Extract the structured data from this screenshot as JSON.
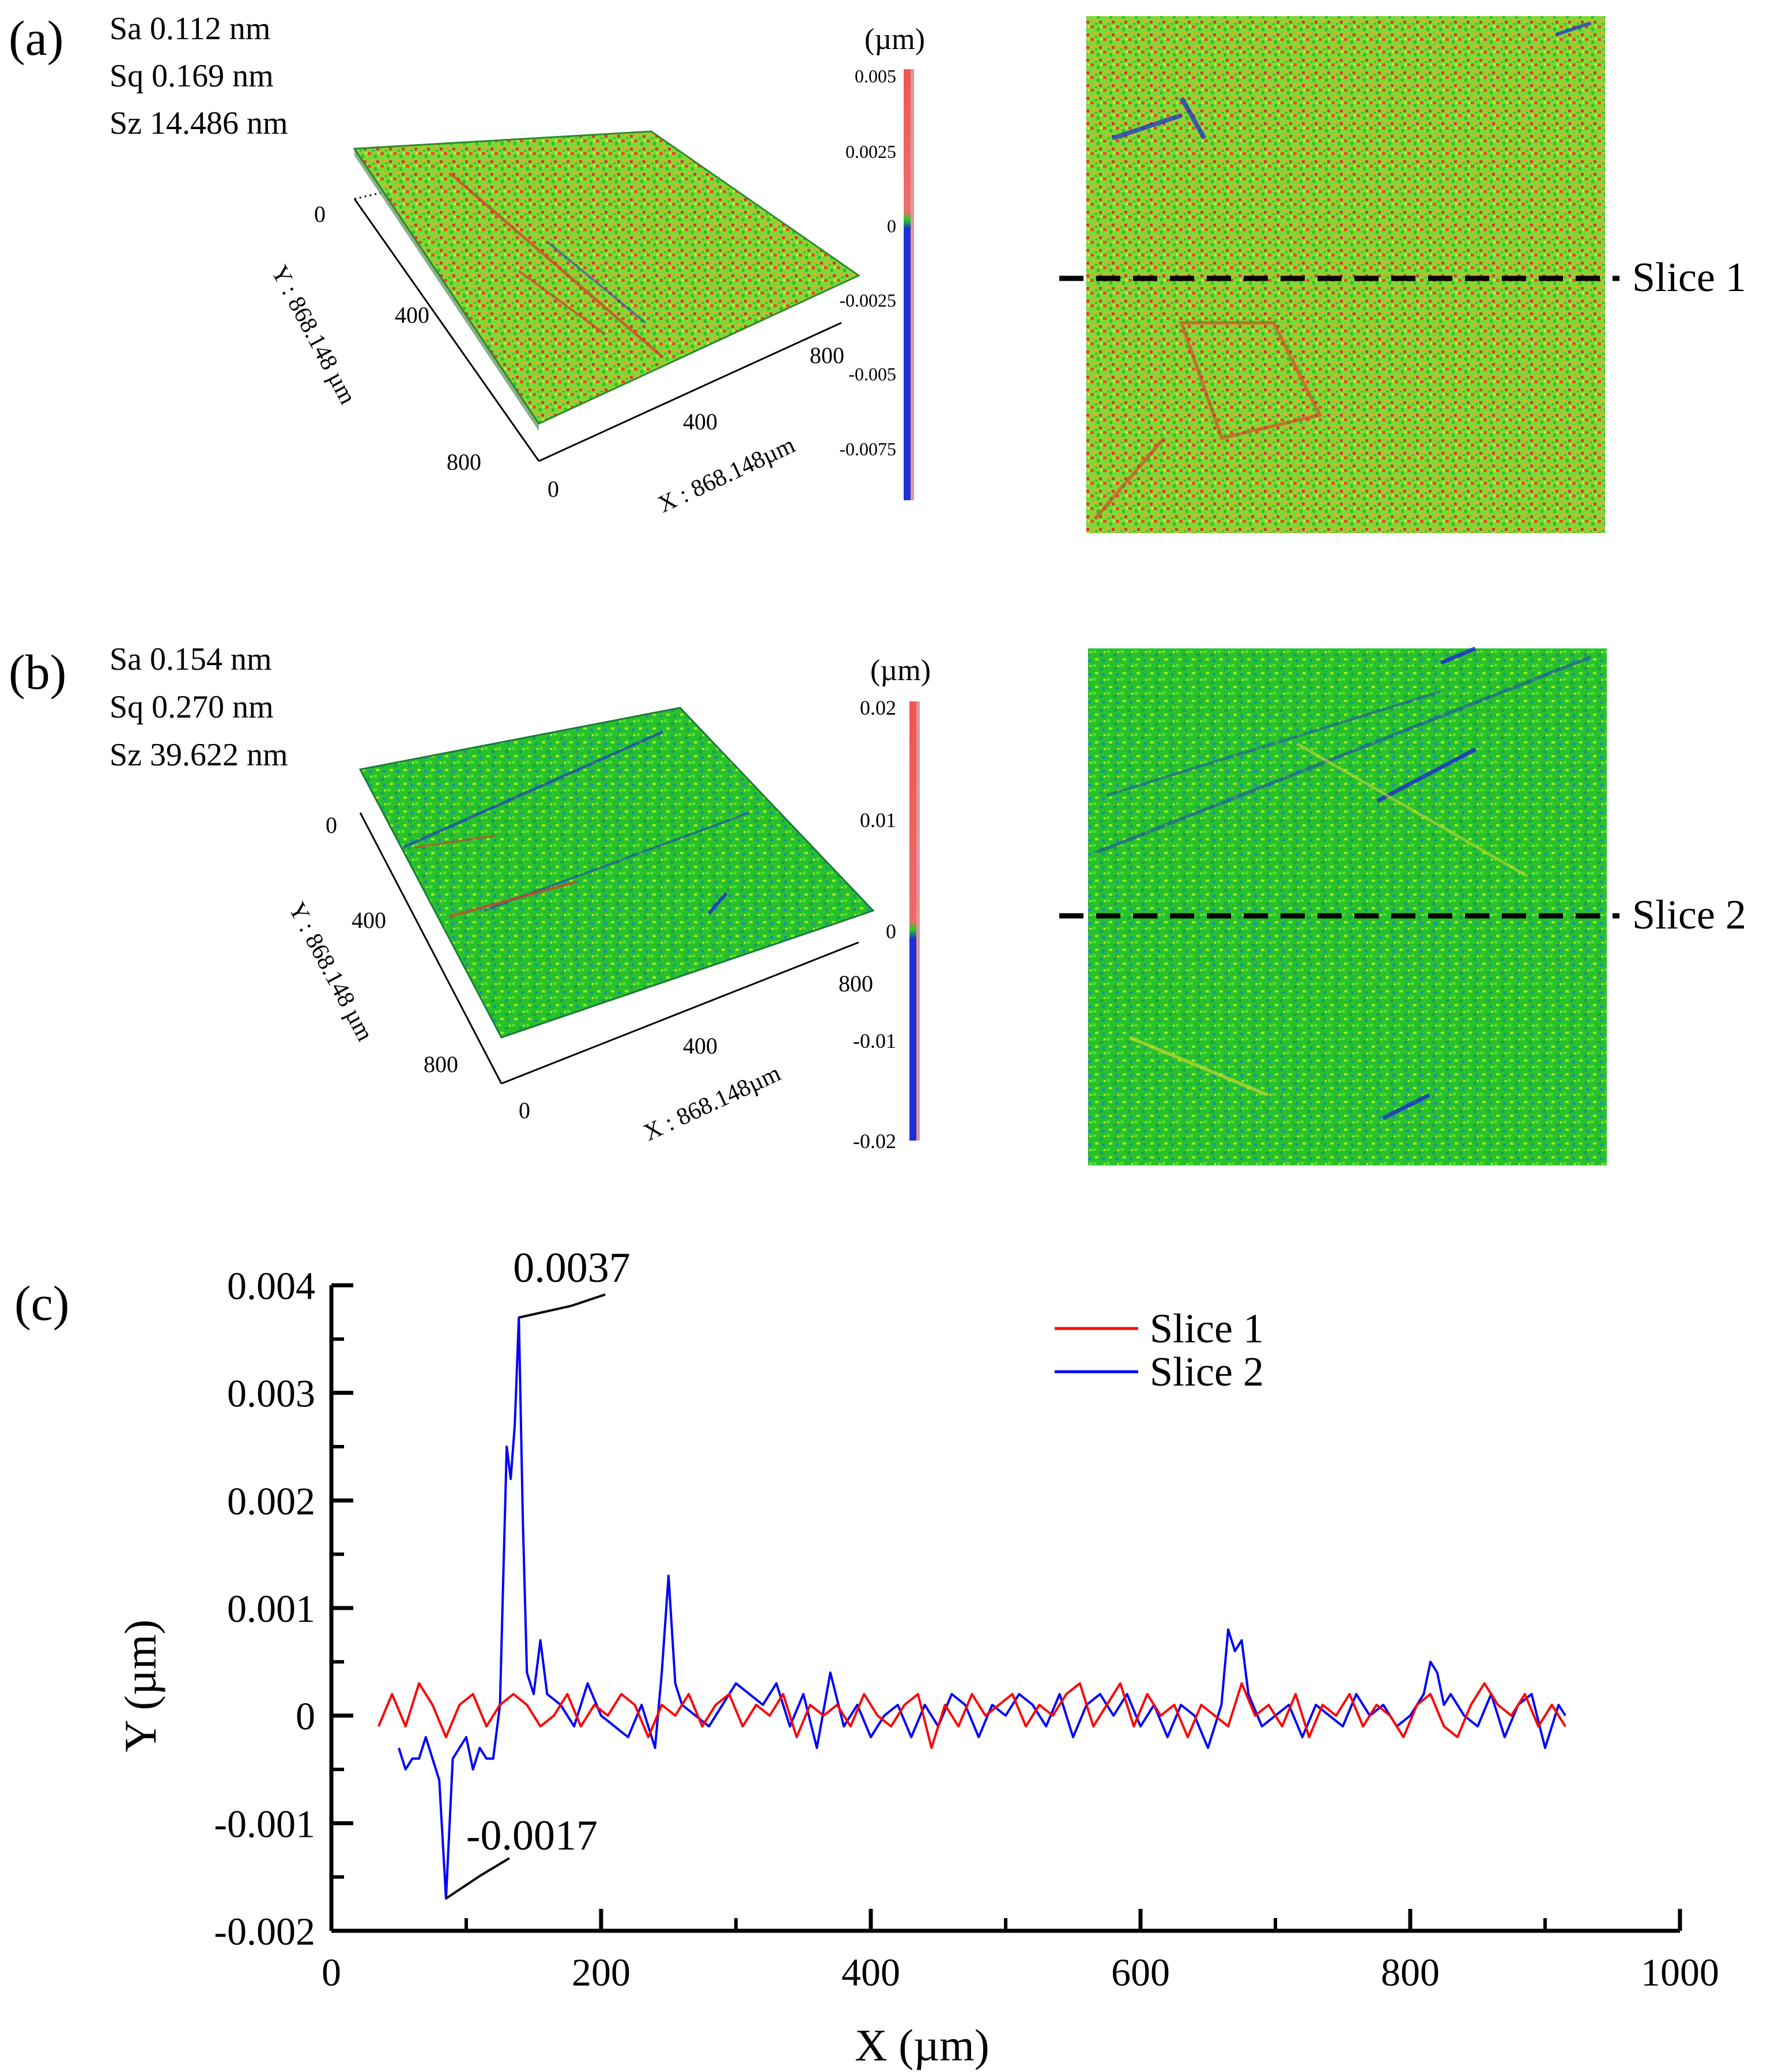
{
  "colors": {
    "surface_green": "#2cc02c",
    "surface_lime": "#9ee62a",
    "surface_orange": "#f08a24",
    "surface_red": "#ea3a2a",
    "surface_blue": "#1a2ad6",
    "colorbar_red": "#ee5555",
    "colorbar_blue": "#1f2fd8",
    "slice1": "#ff0000",
    "slice2": "#0000ff"
  },
  "panel_a": {
    "label": "(a)",
    "stats": [
      "Sa 0.112 nm",
      "Sq 0.169 nm",
      "Sz 14.486 nm"
    ],
    "colorbar_unit": "(µm)",
    "colorbar_ticks": [
      "0.005",
      "0.0025",
      "0",
      "-0.0025",
      "-0.005",
      "-0.0075"
    ],
    "y_axis_label": "Y : 868.148 µm",
    "x_axis_label": "X : 868.148µm",
    "y_ticks": [
      "0",
      "400",
      "800"
    ],
    "x_ticks": [
      "0",
      "400",
      "800"
    ],
    "slice_label": "Slice 1"
  },
  "panel_b": {
    "label": "(b)",
    "stats": [
      "Sa 0.154 nm",
      "Sq 0.270 nm",
      "Sz 39.622 nm"
    ],
    "colorbar_unit": "(µm)",
    "colorbar_ticks": [
      "0.02",
      "0.01",
      "0",
      "-0.01",
      "-0.02"
    ],
    "y_axis_label": "Y : 868.148 µm",
    "x_axis_label": "X : 868.148µm",
    "y_ticks": [
      "0",
      "400",
      "800"
    ],
    "x_ticks": [
      "0",
      "400",
      "800"
    ],
    "slice_label": "Slice 2"
  },
  "chart_data": {
    "type": "line",
    "panel_label": "(c)",
    "xlabel": "X (µm)",
    "ylabel": "Y (µm)",
    "xlim": [
      0,
      1000
    ],
    "ylim": [
      -0.002,
      0.004
    ],
    "x_ticks": [
      0,
      200,
      400,
      600,
      800,
      1000
    ],
    "y_ticks": [
      -0.002,
      -0.001,
      0,
      0.001,
      0.002,
      0.003,
      0.004
    ],
    "x_tick_labels": [
      "0",
      "200",
      "400",
      "600",
      "800",
      "1000"
    ],
    "y_tick_labels": [
      "-0.002",
      "-0.001",
      "0",
      "0.001",
      "0.002",
      "0.003",
      "0.004"
    ],
    "legend_placement": "top-right",
    "series": [
      {
        "name": "Slice 1",
        "color": "#ff0000",
        "x": [
          35,
          45,
          55,
          65,
          75,
          85,
          95,
          105,
          115,
          125,
          135,
          145,
          155,
          165,
          175,
          185,
          195,
          205,
          215,
          225,
          235,
          245,
          255,
          265,
          275,
          285,
          295,
          305,
          315,
          325,
          335,
          345,
          355,
          365,
          375,
          385,
          395,
          405,
          415,
          425,
          435,
          445,
          455,
          465,
          475,
          485,
          495,
          505,
          515,
          525,
          535,
          545,
          555,
          565,
          575,
          585,
          595,
          605,
          615,
          625,
          635,
          645,
          655,
          665,
          675,
          685,
          695,
          705,
          715,
          725,
          735,
          745,
          755,
          765,
          775,
          785,
          795,
          805,
          815,
          825,
          835,
          845,
          855,
          865,
          875,
          885,
          895,
          905,
          915
        ],
        "y": [
          -0.0001,
          0.0002,
          -0.0001,
          0.0003,
          0.0001,
          -0.0002,
          0.0001,
          0.0002,
          -0.0001,
          0.0001,
          0.0002,
          0.0001,
          -0.0001,
          0.0,
          0.0002,
          -0.0001,
          0.0001,
          0.0,
          0.0002,
          0.0001,
          -0.0002,
          0.0001,
          0.0,
          0.0002,
          -0.0001,
          0.0001,
          0.0002,
          -0.0001,
          0.0001,
          0.0,
          0.0002,
          -0.0002,
          0.0001,
          0.0,
          0.0001,
          -0.0001,
          0.0002,
          0.0,
          -0.0001,
          0.0001,
          0.0002,
          -0.0003,
          0.0001,
          -0.0001,
          0.0002,
          0.0,
          0.0001,
          0.0002,
          -0.0001,
          0.0001,
          0.0,
          0.0002,
          0.0003,
          -0.0001,
          0.0001,
          0.0003,
          -0.0001,
          0.0002,
          0.0,
          0.0001,
          -0.0002,
          0.0001,
          0.0,
          -0.0001,
          0.0003,
          0.0,
          0.0001,
          -0.0001,
          0.0002,
          -0.0002,
          0.0001,
          0.0,
          0.0002,
          -0.0001,
          0.0001,
          0.0,
          -0.0002,
          0.0001,
          0.0002,
          -0.0001,
          -0.0002,
          0.0001,
          0.0003,
          0.0001,
          0.0,
          0.0002,
          -0.0001,
          0.0001,
          -0.0001
        ]
      },
      {
        "name": "Slice 2",
        "color": "#0000ff",
        "x": [
          50,
          55,
          60,
          65,
          70,
          75,
          80,
          85,
          90,
          95,
          100,
          105,
          110,
          115,
          120,
          125,
          130,
          133,
          136,
          139,
          142,
          145,
          150,
          155,
          160,
          170,
          180,
          190,
          200,
          210,
          220,
          230,
          240,
          245,
          250,
          255,
          260,
          270,
          280,
          290,
          300,
          310,
          320,
          330,
          340,
          350,
          360,
          370,
          380,
          390,
          400,
          410,
          420,
          430,
          440,
          450,
          460,
          470,
          480,
          490,
          500,
          510,
          520,
          530,
          540,
          550,
          560,
          570,
          580,
          590,
          600,
          610,
          620,
          630,
          640,
          650,
          660,
          665,
          670,
          675,
          680,
          690,
          700,
          710,
          720,
          730,
          740,
          750,
          760,
          770,
          780,
          790,
          800,
          810,
          815,
          820,
          825,
          830,
          840,
          850,
          860,
          870,
          880,
          890,
          900,
          910,
          915
        ],
        "y": [
          -0.0003,
          -0.0005,
          -0.0004,
          -0.0004,
          -0.0002,
          -0.0004,
          -0.0006,
          -0.0017,
          -0.0004,
          -0.0003,
          -0.0002,
          -0.0005,
          -0.0003,
          -0.0004,
          -0.0004,
          0.0001,
          0.0025,
          0.0022,
          0.0027,
          0.0037,
          0.0018,
          0.0004,
          0.0002,
          0.0007,
          0.0002,
          0.0001,
          -0.0001,
          0.0003,
          0.0,
          -0.0001,
          -0.0002,
          0.0001,
          -0.0003,
          0.0004,
          0.0013,
          0.0003,
          0.0001,
          0.0,
          -0.0001,
          0.0001,
          0.0003,
          0.0002,
          0.0001,
          0.0003,
          -0.0001,
          0.0002,
          -0.0003,
          0.0004,
          -0.0001,
          0.0001,
          -0.0002,
          0.0,
          0.0001,
          -0.0002,
          0.0001,
          -0.0001,
          0.0002,
          0.0001,
          -0.0002,
          0.0001,
          0.0,
          0.0002,
          0.0001,
          -0.0001,
          0.0002,
          -0.0002,
          0.0001,
          0.0002,
          0.0,
          0.0002,
          -0.0001,
          0.0001,
          -0.0002,
          0.0001,
          0.0,
          -0.0003,
          0.0001,
          0.0008,
          0.0006,
          0.0007,
          0.0002,
          -0.0001,
          0.0,
          0.0001,
          -0.0002,
          0.0001,
          0.0,
          -0.0001,
          0.0002,
          0.0,
          0.0001,
          -0.0001,
          0.0,
          0.0002,
          0.0005,
          0.0004,
          0.0001,
          0.0002,
          0.0,
          -0.0001,
          0.0002,
          -0.0002,
          0.0001,
          0.0002,
          -0.0003,
          0.0001,
          0.0
        ]
      }
    ],
    "annotations": [
      {
        "text": "0.0037",
        "x": 139,
        "y": 0.0037
      },
      {
        "text": "-0.0017",
        "x": 85,
        "y": -0.0017
      }
    ]
  }
}
